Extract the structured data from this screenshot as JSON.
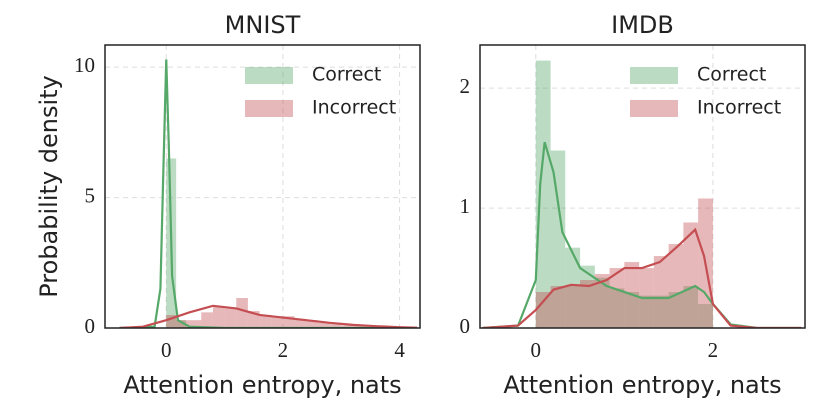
{
  "chart_data": [
    {
      "type": "histogram",
      "title": "MNIST",
      "xlabel": "Attention entropy, nats",
      "ylabel": "Probability density",
      "xlim": [
        -1.05,
        4.35
      ],
      "ylim": [
        0,
        10.85
      ],
      "xticks": [
        0,
        2,
        4
      ],
      "yticks": [
        0,
        5,
        10
      ],
      "grid": true,
      "legend": "upper right",
      "series": [
        {
          "name": "Correct",
          "color": "#55a868",
          "bins": [
            0,
            0.17,
            0.34,
            0.51
          ],
          "counts": [
            6.5,
            0.3,
            0.05
          ],
          "kde": {
            "x": [
              -0.8,
              -0.2,
              -0.1,
              -0.05,
              0,
              0.05,
              0.1,
              0.2,
              0.4,
              1,
              3,
              4.3
            ],
            "values": [
              0,
              0.05,
              1.5,
              6,
              10.3,
              6.5,
              2,
              0.3,
              0.05,
              0,
              0,
              0
            ]
          }
        },
        {
          "name": "Incorrect",
          "color": "#c44e52",
          "bins": [
            0,
            0.2,
            0.4,
            0.6,
            0.8,
            1.0,
            1.2,
            1.4,
            1.6,
            1.8,
            2.0,
            2.2,
            2.4,
            2.6,
            2.8,
            3.0,
            3.2,
            3.4,
            3.6,
            3.8,
            4.0,
            4.2
          ],
          "counts": [
            0.5,
            0.3,
            0.3,
            0.6,
            0.8,
            0.75,
            1.15,
            0.65,
            0.5,
            0.45,
            0.45,
            0.35,
            0.3,
            0.2,
            0.15,
            0.1,
            0.1,
            0.05,
            0.05,
            0.05,
            0.03
          ],
          "kde": {
            "x": [
              -0.8,
              -0.4,
              0,
              0.4,
              0.8,
              1.2,
              1.6,
              2,
              2.4,
              2.8,
              3.2,
              3.6,
              4,
              4.3
            ],
            "values": [
              0,
              0.05,
              0.3,
              0.6,
              0.85,
              0.75,
              0.5,
              0.4,
              0.3,
              0.2,
              0.12,
              0.07,
              0.03,
              0.01
            ]
          }
        }
      ]
    },
    {
      "type": "histogram",
      "title": "IMDB",
      "xlabel": "Attention entropy, nats",
      "xlim": [
        -0.63,
        3.04
      ],
      "ylim": [
        0,
        2.36
      ],
      "xticks": [
        0,
        2
      ],
      "yticks": [
        0,
        1,
        2
      ],
      "grid": true,
      "legend": "upper right",
      "series": [
        {
          "name": "Correct",
          "color": "#55a868",
          "bins": [
            0,
            0.167,
            0.333,
            0.5,
            0.667,
            0.833,
            1.0,
            1.167,
            1.333,
            1.5,
            1.667,
            1.833,
            2.0
          ],
          "counts": [
            2.23,
            1.48,
            0.67,
            0.52,
            0.42,
            0.33,
            0.3,
            0.27,
            0.27,
            0.3,
            0.35,
            0.2
          ],
          "kde": {
            "x": [
              -0.6,
              -0.2,
              0,
              0.05,
              0.1,
              0.2,
              0.3,
              0.5,
              0.8,
              1.2,
              1.5,
              1.8,
              1.9,
              2.0,
              2.2,
              2.5,
              3
            ],
            "values": [
              0,
              0.02,
              0.4,
              1.2,
              1.55,
              1.3,
              0.8,
              0.5,
              0.35,
              0.25,
              0.25,
              0.35,
              0.3,
              0.2,
              0.03,
              0,
              0
            ]
          }
        },
        {
          "name": "Incorrect",
          "color": "#c44e52",
          "bins": [
            0,
            0.167,
            0.333,
            0.5,
            0.667,
            0.833,
            1.0,
            1.167,
            1.333,
            1.5,
            1.667,
            1.833,
            2.0
          ],
          "counts": [
            0.3,
            0.35,
            0.35,
            0.4,
            0.45,
            0.5,
            0.55,
            0.5,
            0.6,
            0.7,
            0.88,
            1.08
          ],
          "kde": {
            "x": [
              -0.6,
              -0.2,
              0,
              0.2,
              0.4,
              0.6,
              0.8,
              1,
              1.2,
              1.4,
              1.6,
              1.8,
              1.9,
              2,
              2.2,
              2.5,
              3
            ],
            "values": [
              0,
              0.02,
              0.15,
              0.32,
              0.36,
              0.35,
              0.4,
              0.5,
              0.5,
              0.55,
              0.68,
              0.82,
              0.6,
              0.2,
              0.02,
              0,
              0
            ]
          }
        }
      ]
    }
  ]
}
